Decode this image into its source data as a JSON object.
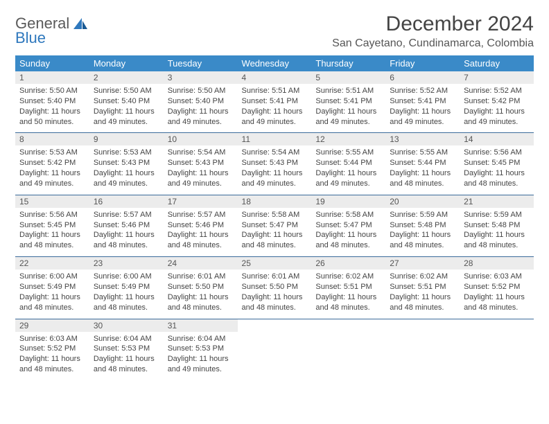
{
  "brand": {
    "part1": "General",
    "part2": "Blue"
  },
  "title": "December 2024",
  "location": "San Cayetano, Cundinamarca, Colombia",
  "colors": {
    "header_bg": "#3a8ac8",
    "header_text": "#ffffff",
    "daynum_bg": "#ececec",
    "rule": "#3a6a9a",
    "brand_gray": "#5a5a5a",
    "brand_blue": "#2f78bd"
  },
  "weekdays": [
    "Sunday",
    "Monday",
    "Tuesday",
    "Wednesday",
    "Thursday",
    "Friday",
    "Saturday"
  ],
  "weeks": [
    [
      {
        "n": "1",
        "sr": "5:50 AM",
        "ss": "5:40 PM",
        "dl": "11 hours and 50 minutes."
      },
      {
        "n": "2",
        "sr": "5:50 AM",
        "ss": "5:40 PM",
        "dl": "11 hours and 49 minutes."
      },
      {
        "n": "3",
        "sr": "5:50 AM",
        "ss": "5:40 PM",
        "dl": "11 hours and 49 minutes."
      },
      {
        "n": "4",
        "sr": "5:51 AM",
        "ss": "5:41 PM",
        "dl": "11 hours and 49 minutes."
      },
      {
        "n": "5",
        "sr": "5:51 AM",
        "ss": "5:41 PM",
        "dl": "11 hours and 49 minutes."
      },
      {
        "n": "6",
        "sr": "5:52 AM",
        "ss": "5:41 PM",
        "dl": "11 hours and 49 minutes."
      },
      {
        "n": "7",
        "sr": "5:52 AM",
        "ss": "5:42 PM",
        "dl": "11 hours and 49 minutes."
      }
    ],
    [
      {
        "n": "8",
        "sr": "5:53 AM",
        "ss": "5:42 PM",
        "dl": "11 hours and 49 minutes."
      },
      {
        "n": "9",
        "sr": "5:53 AM",
        "ss": "5:43 PM",
        "dl": "11 hours and 49 minutes."
      },
      {
        "n": "10",
        "sr": "5:54 AM",
        "ss": "5:43 PM",
        "dl": "11 hours and 49 minutes."
      },
      {
        "n": "11",
        "sr": "5:54 AM",
        "ss": "5:43 PM",
        "dl": "11 hours and 49 minutes."
      },
      {
        "n": "12",
        "sr": "5:55 AM",
        "ss": "5:44 PM",
        "dl": "11 hours and 49 minutes."
      },
      {
        "n": "13",
        "sr": "5:55 AM",
        "ss": "5:44 PM",
        "dl": "11 hours and 48 minutes."
      },
      {
        "n": "14",
        "sr": "5:56 AM",
        "ss": "5:45 PM",
        "dl": "11 hours and 48 minutes."
      }
    ],
    [
      {
        "n": "15",
        "sr": "5:56 AM",
        "ss": "5:45 PM",
        "dl": "11 hours and 48 minutes."
      },
      {
        "n": "16",
        "sr": "5:57 AM",
        "ss": "5:46 PM",
        "dl": "11 hours and 48 minutes."
      },
      {
        "n": "17",
        "sr": "5:57 AM",
        "ss": "5:46 PM",
        "dl": "11 hours and 48 minutes."
      },
      {
        "n": "18",
        "sr": "5:58 AM",
        "ss": "5:47 PM",
        "dl": "11 hours and 48 minutes."
      },
      {
        "n": "19",
        "sr": "5:58 AM",
        "ss": "5:47 PM",
        "dl": "11 hours and 48 minutes."
      },
      {
        "n": "20",
        "sr": "5:59 AM",
        "ss": "5:48 PM",
        "dl": "11 hours and 48 minutes."
      },
      {
        "n": "21",
        "sr": "5:59 AM",
        "ss": "5:48 PM",
        "dl": "11 hours and 48 minutes."
      }
    ],
    [
      {
        "n": "22",
        "sr": "6:00 AM",
        "ss": "5:49 PM",
        "dl": "11 hours and 48 minutes."
      },
      {
        "n": "23",
        "sr": "6:00 AM",
        "ss": "5:49 PM",
        "dl": "11 hours and 48 minutes."
      },
      {
        "n": "24",
        "sr": "6:01 AM",
        "ss": "5:50 PM",
        "dl": "11 hours and 48 minutes."
      },
      {
        "n": "25",
        "sr": "6:01 AM",
        "ss": "5:50 PM",
        "dl": "11 hours and 48 minutes."
      },
      {
        "n": "26",
        "sr": "6:02 AM",
        "ss": "5:51 PM",
        "dl": "11 hours and 48 minutes."
      },
      {
        "n": "27",
        "sr": "6:02 AM",
        "ss": "5:51 PM",
        "dl": "11 hours and 48 minutes."
      },
      {
        "n": "28",
        "sr": "6:03 AM",
        "ss": "5:52 PM",
        "dl": "11 hours and 48 minutes."
      }
    ],
    [
      {
        "n": "29",
        "sr": "6:03 AM",
        "ss": "5:52 PM",
        "dl": "11 hours and 48 minutes."
      },
      {
        "n": "30",
        "sr": "6:04 AM",
        "ss": "5:53 PM",
        "dl": "11 hours and 48 minutes."
      },
      {
        "n": "31",
        "sr": "6:04 AM",
        "ss": "5:53 PM",
        "dl": "11 hours and 49 minutes."
      },
      null,
      null,
      null,
      null
    ]
  ],
  "labels": {
    "sunrise": "Sunrise: ",
    "sunset": "Sunset: ",
    "daylight": "Daylight: "
  }
}
